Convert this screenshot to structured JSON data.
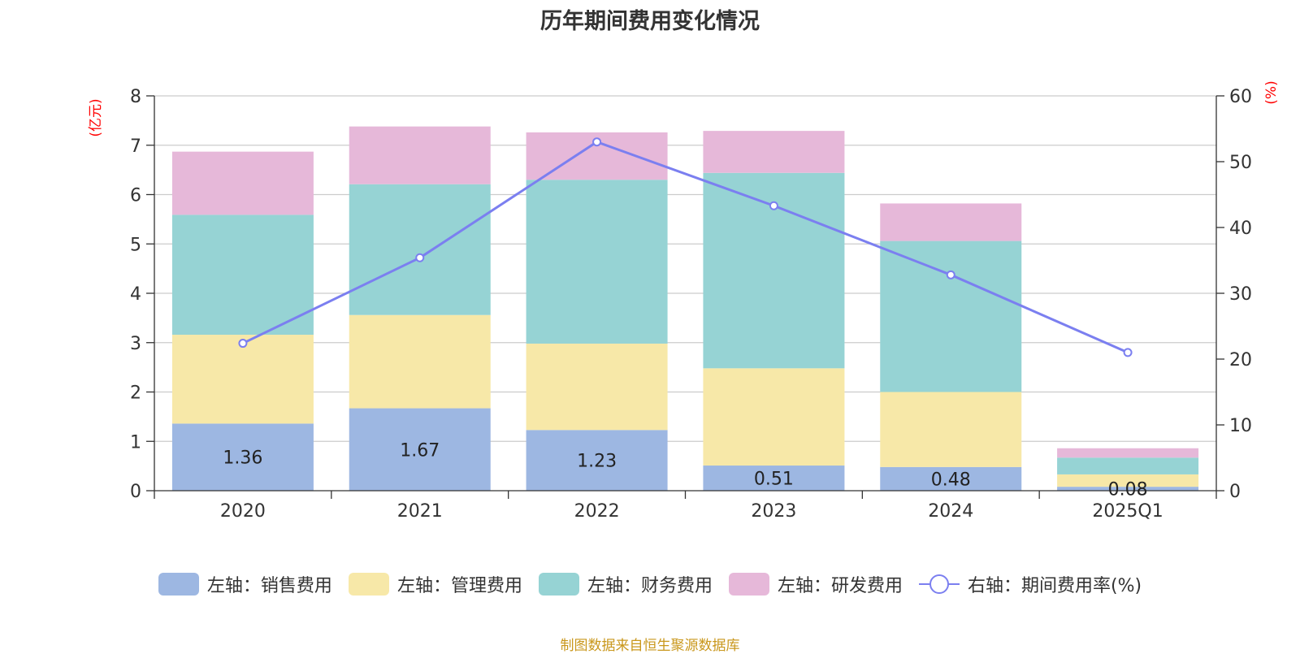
{
  "title": "历年期间费用变化情况",
  "source": "制图数据来自恒生聚源数据库",
  "chart_data": {
    "type": "bar",
    "stacked": true,
    "categories": [
      "2020",
      "2021",
      "2022",
      "2023",
      "2024",
      "2025Q1"
    ],
    "y_left": {
      "label": "(亿元)",
      "min": 0,
      "max": 8,
      "ticks": [
        "0",
        "1",
        "2",
        "3",
        "4",
        "5",
        "6",
        "7",
        "8"
      ],
      "color": "#ff0000"
    },
    "y_right": {
      "label": "(%)",
      "min": 0,
      "max": 60,
      "ticks": [
        "0",
        "10",
        "20",
        "30",
        "40",
        "50",
        "60"
      ],
      "color": "#ff0000"
    },
    "grid": true,
    "legend_position": "bottom",
    "series": [
      {
        "name": "左轴：销售费用",
        "axis": "left",
        "color": "#9db7e2",
        "values": [
          1.36,
          1.67,
          1.23,
          0.51,
          0.48,
          0.08
        ],
        "labels": [
          "1.36",
          "1.67",
          "1.23",
          "0.51",
          "0.48",
          "0.08"
        ]
      },
      {
        "name": "左轴：管理费用",
        "axis": "left",
        "color": "#f7e8a8",
        "values": [
          1.8,
          1.89,
          1.75,
          1.97,
          1.52,
          0.25
        ]
      },
      {
        "name": "左轴：财务费用",
        "axis": "left",
        "color": "#96d3d4",
        "values": [
          2.43,
          2.65,
          3.32,
          3.96,
          3.06,
          0.34
        ]
      },
      {
        "name": "左轴：研发费用",
        "axis": "left",
        "color": "#e6b8d9",
        "values": [
          1.28,
          1.17,
          0.96,
          0.85,
          0.76,
          0.19
        ]
      },
      {
        "name": "右轴：期间费用率(%)",
        "axis": "right",
        "type": "line",
        "color": "#7b7ff0",
        "values": [
          22.4,
          35.4,
          53.0,
          43.3,
          32.8,
          21.0
        ]
      }
    ]
  }
}
